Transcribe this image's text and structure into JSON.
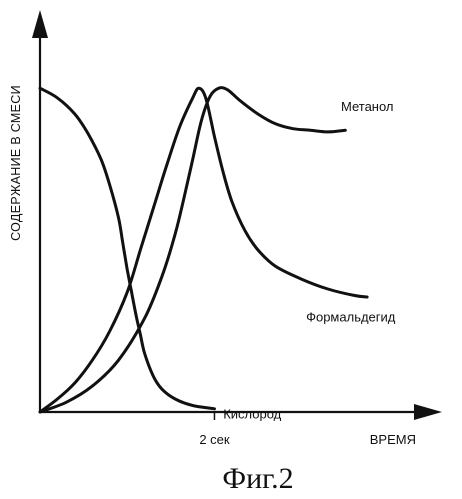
{
  "chart_data": {
    "type": "line",
    "title": "",
    "caption": "Фиг.2",
    "xlabel": "ВРЕМЯ",
    "ylabel": "СОДЕРЖАНИЕ В СМЕСИ",
    "x_ticks": [
      {
        "value": 2,
        "label": "2 сек"
      }
    ],
    "xlim": [
      0,
      4.7
    ],
    "ylim": [
      0,
      1.05
    ],
    "grid": false,
    "legend": "none",
    "series": [
      {
        "name": "Кислород",
        "label_near": [
          2.1,
          -0.02
        ],
        "points": [
          [
            0,
            1.0
          ],
          [
            0.2,
            0.97
          ],
          [
            0.4,
            0.92
          ],
          [
            0.55,
            0.86
          ],
          [
            0.7,
            0.78
          ],
          [
            0.8,
            0.7
          ],
          [
            0.9,
            0.6
          ],
          [
            0.95,
            0.52
          ],
          [
            1.0,
            0.44
          ],
          [
            1.05,
            0.37
          ],
          [
            1.1,
            0.3
          ],
          [
            1.15,
            0.24
          ],
          [
            1.2,
            0.18
          ],
          [
            1.3,
            0.11
          ],
          [
            1.4,
            0.07
          ],
          [
            1.55,
            0.04
          ],
          [
            1.75,
            0.02
          ],
          [
            2.0,
            0.01
          ]
        ]
      },
      {
        "name": "Формальдегид",
        "label_near": [
          3.05,
          0.28
        ],
        "points": [
          [
            0,
            0.0
          ],
          [
            0.2,
            0.04
          ],
          [
            0.4,
            0.09
          ],
          [
            0.6,
            0.16
          ],
          [
            0.8,
            0.25
          ],
          [
            1.0,
            0.37
          ],
          [
            1.15,
            0.5
          ],
          [
            1.3,
            0.63
          ],
          [
            1.45,
            0.76
          ],
          [
            1.6,
            0.88
          ],
          [
            1.75,
            0.97
          ],
          [
            1.82,
            1.0
          ],
          [
            1.9,
            0.97
          ],
          [
            2.0,
            0.85
          ],
          [
            2.1,
            0.74
          ],
          [
            2.2,
            0.65
          ],
          [
            2.35,
            0.56
          ],
          [
            2.5,
            0.5
          ],
          [
            2.7,
            0.45
          ],
          [
            3.0,
            0.41
          ],
          [
            3.3,
            0.38
          ],
          [
            3.6,
            0.36
          ],
          [
            3.75,
            0.355
          ]
        ]
      },
      {
        "name": "Метанол",
        "label_near": [
          3.45,
          0.93
        ],
        "points": [
          [
            0,
            0.0
          ],
          [
            0.3,
            0.03
          ],
          [
            0.6,
            0.08
          ],
          [
            0.9,
            0.16
          ],
          [
            1.2,
            0.29
          ],
          [
            1.4,
            0.42
          ],
          [
            1.55,
            0.55
          ],
          [
            1.65,
            0.66
          ],
          [
            1.75,
            0.78
          ],
          [
            1.85,
            0.9
          ],
          [
            1.95,
            0.975
          ],
          [
            2.05,
            1.0
          ],
          [
            2.15,
            0.995
          ],
          [
            2.3,
            0.96
          ],
          [
            2.5,
            0.92
          ],
          [
            2.7,
            0.89
          ],
          [
            2.9,
            0.875
          ],
          [
            3.1,
            0.87
          ],
          [
            3.3,
            0.865
          ],
          [
            3.5,
            0.87
          ]
        ]
      }
    ]
  }
}
